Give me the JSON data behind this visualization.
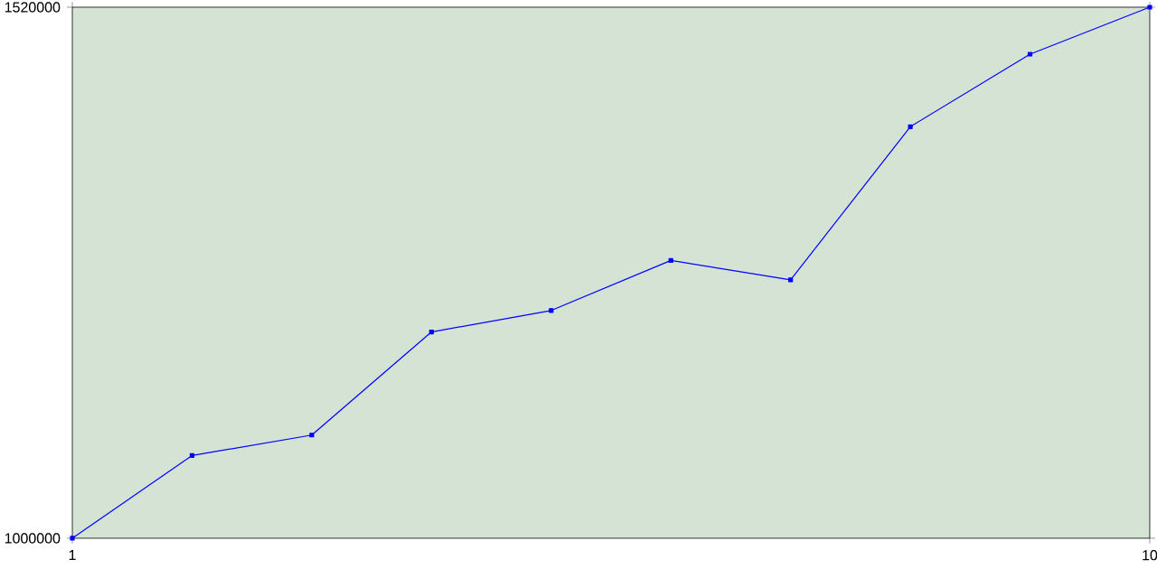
{
  "chart_data": {
    "type": "line",
    "x": [
      1,
      2,
      3,
      4,
      5,
      6,
      7,
      8,
      9,
      10
    ],
    "series": [
      {
        "color": "#0000ff",
        "values": [
          1000000,
          1081000,
          1101000,
          1202000,
          1223000,
          1272000,
          1253000,
          1403000,
          1474000,
          1520000
        ]
      }
    ],
    "xlim": [
      1,
      10
    ],
    "ylim": [
      1000000,
      1520000
    ],
    "xticks": [
      1,
      10
    ],
    "yticks": [
      1000000,
      1520000
    ],
    "marker": "square",
    "grid": false
  }
}
